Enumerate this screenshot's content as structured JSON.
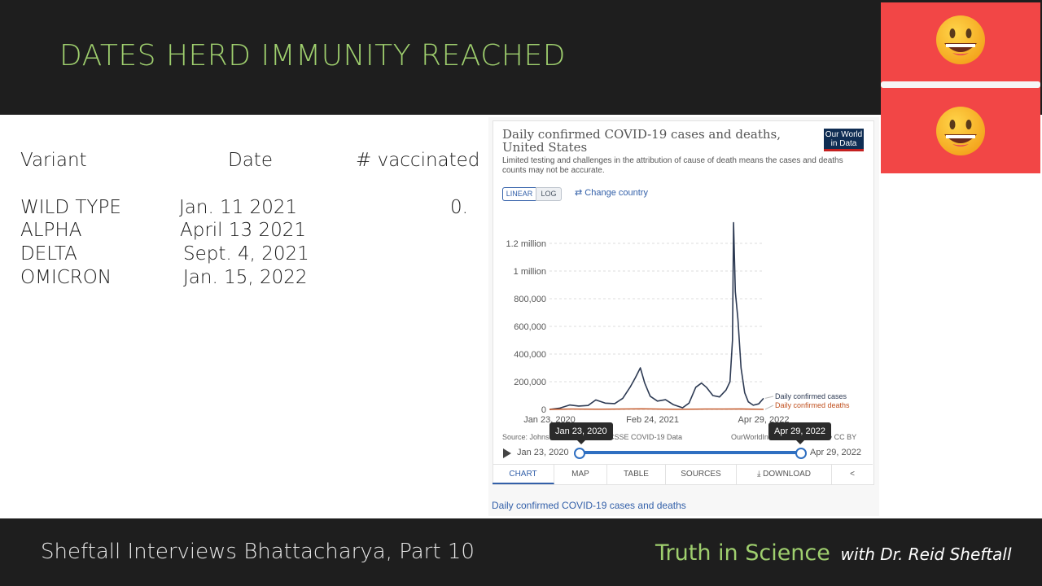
{
  "slide": {
    "title": "DATES HERD IMMUNITY REACHED",
    "footer_left": "Sheftall Interviews Bhattacharya, Part 10",
    "footer_brand": "Truth in Science",
    "footer_brand_sub": "with Dr. Reid Sheftall"
  },
  "table": {
    "headers": [
      "Variant",
      "Date",
      "# vaccinated"
    ],
    "rows": [
      {
        "variant": "WILD TYPE",
        "date": "Jan. 11 2021",
        "vaccinated": "0."
      },
      {
        "variant": "ALPHA",
        "date": "April 13 2021",
        "vaccinated": ""
      },
      {
        "variant": "DELTA",
        "date": "Sept. 4, 2021",
        "vaccinated": ""
      },
      {
        "variant": "OMICRON",
        "date": "Jan. 15, 2022",
        "vaccinated": ""
      }
    ]
  },
  "owid": {
    "logo_line1": "Our World",
    "logo_line2": "in Data",
    "toggle_linear": "LINEAR",
    "toggle_log": "LOG",
    "change_country": "Change country",
    "source_left": "Source: Johns",
    "source_mid": "CSSE COVID-19 Data",
    "source_right": "OurWorldIn",
    "source_right_tail": "s • CC BY",
    "tooltip_start": "Jan 23, 2020",
    "tooltip_end": "Apr 29, 2022",
    "slider_start": "Jan 23, 2020",
    "slider_end": "Apr 29, 2022",
    "tabs": [
      "CHART",
      "MAP",
      "TABLE",
      "SOURCES",
      "DOWNLOAD"
    ],
    "caption": "Daily confirmed COVID-19 cases and deaths",
    "colors": {
      "cases": "#2d3a53",
      "deaths": "#c0501f",
      "accent": "#3360a9"
    }
  },
  "chart_data": {
    "type": "line",
    "title": "Daily confirmed COVID-19 cases and deaths, United States",
    "subtitle": "Limited testing and challenges in the attribution of cause of death means the cases and deaths counts may not be accurate.",
    "x_ticks": [
      "Jan 23, 2020",
      "Feb 24, 2021",
      "Apr 29, 2022"
    ],
    "y_ticks": [
      "0",
      "200,000",
      "400,000",
      "600,000",
      "800,000",
      "1 million",
      "1.2 million"
    ],
    "ylim": [
      0,
      1400000
    ],
    "x_range": [
      "2020-01-23",
      "2022-04-29"
    ],
    "grid": true,
    "series": [
      {
        "name": "Daily confirmed cases",
        "color": "#2d3a53",
        "x": [
          "2020-01-23",
          "2020-03-01",
          "2020-04-10",
          "2020-05-15",
          "2020-06-20",
          "2020-07-20",
          "2020-08-25",
          "2020-10-01",
          "2020-11-01",
          "2020-12-01",
          "2020-12-20",
          "2021-01-08",
          "2021-01-25",
          "2021-02-15",
          "2021-03-15",
          "2021-04-15",
          "2021-05-15",
          "2021-06-20",
          "2021-07-15",
          "2021-08-10",
          "2021-09-01",
          "2021-09-20",
          "2021-10-15",
          "2021-11-10",
          "2021-12-05",
          "2021-12-20",
          "2021-12-30",
          "2022-01-03",
          "2022-01-10",
          "2022-01-20",
          "2022-02-01",
          "2022-02-15",
          "2022-03-01",
          "2022-03-20",
          "2022-04-10",
          "2022-04-29"
        ],
        "y": [
          0,
          8000,
          32000,
          24000,
          28000,
          68000,
          45000,
          42000,
          80000,
          165000,
          230000,
          300000,
          190000,
          95000,
          60000,
          70000,
          35000,
          12000,
          45000,
          160000,
          190000,
          160000,
          100000,
          90000,
          140000,
          200000,
          500000,
          1350000,
          850000,
          650000,
          300000,
          120000,
          55000,
          30000,
          40000,
          80000
        ]
      },
      {
        "name": "Daily confirmed deaths",
        "color": "#c0501f",
        "x": [
          "2020-01-23",
          "2020-04-15",
          "2020-08-01",
          "2021-01-15",
          "2021-06-01",
          "2021-09-15",
          "2022-02-01",
          "2022-04-29"
        ],
        "y": [
          0,
          2500,
          1200,
          4000,
          500,
          2200,
          3000,
          500
        ]
      }
    ]
  }
}
